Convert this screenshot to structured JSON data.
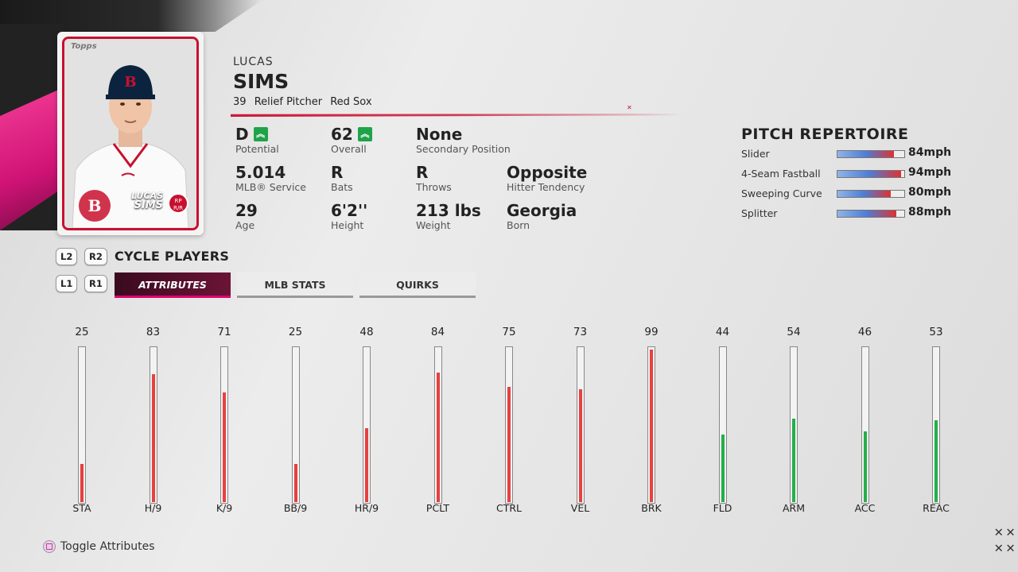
{
  "player": {
    "first_name": "LUCAS",
    "last_name": "SIMS",
    "number": "39",
    "position": "Relief Pitcher",
    "team": "Red Sox",
    "card_first": "LUCAS",
    "card_last": "SIMS",
    "card_pos": "RP",
    "card_hand": "R/R",
    "card_brand": "Topps"
  },
  "info": {
    "potential": {
      "value": "D",
      "label": "Potential"
    },
    "overall": {
      "value": "62",
      "label": "Overall"
    },
    "secondary": {
      "value": "None",
      "label": "Secondary Position"
    },
    "service": {
      "value": "5.014",
      "label": "MLB® Service"
    },
    "bats": {
      "value": "R",
      "label": "Bats"
    },
    "throws": {
      "value": "R",
      "label": "Throws"
    },
    "tendency": {
      "value": "Opposite",
      "label": "Hitter Tendency"
    },
    "age": {
      "value": "29",
      "label": "Age"
    },
    "height": {
      "value": "6'2''",
      "label": "Height"
    },
    "weight": {
      "value": "213 lbs",
      "label": "Weight"
    },
    "born": {
      "value": "Georgia",
      "label": "Born"
    }
  },
  "repertoire": {
    "title": "PITCH REPERTOIRE",
    "pitches": [
      {
        "name": "Slider",
        "speed": "84mph",
        "fill": 0.85
      },
      {
        "name": "4-Seam Fastball",
        "speed": "94mph",
        "fill": 0.95
      },
      {
        "name": "Sweeping Curve",
        "speed": "80mph",
        "fill": 0.8
      },
      {
        "name": "Splitter",
        "speed": "88mph",
        "fill": 0.88
      }
    ]
  },
  "controls": {
    "l2": "L2",
    "r2": "R2",
    "cycle_label": "CYCLE PLAYERS",
    "l1": "L1",
    "r1": "R1"
  },
  "tabs": [
    {
      "label": "ATTRIBUTES",
      "active": true
    },
    {
      "label": "MLB STATS",
      "active": false
    },
    {
      "label": "QUIRKS",
      "active": false
    }
  ],
  "attributes": [
    {
      "name": "STA",
      "value": 25,
      "color": "#e84040"
    },
    {
      "name": "H/9",
      "value": 83,
      "color": "#e84040"
    },
    {
      "name": "K/9",
      "value": 71,
      "color": "#e84040"
    },
    {
      "name": "BB/9",
      "value": 25,
      "color": "#e84040"
    },
    {
      "name": "HR/9",
      "value": 48,
      "color": "#e84040"
    },
    {
      "name": "PCLT",
      "value": 84,
      "color": "#e84040"
    },
    {
      "name": "CTRL",
      "value": 75,
      "color": "#e84040"
    },
    {
      "name": "VEL",
      "value": 73,
      "color": "#e84040"
    },
    {
      "name": "BRK",
      "value": 99,
      "color": "#e84040"
    },
    {
      "name": "FLD",
      "value": 44,
      "color": "#22b04a"
    },
    {
      "name": "ARM",
      "value": 54,
      "color": "#22b04a"
    },
    {
      "name": "ACC",
      "value": 46,
      "color": "#22b04a"
    },
    {
      "name": "REAC",
      "value": 53,
      "color": "#22b04a"
    }
  ],
  "footer": {
    "toggle_label": "Toggle Attributes"
  }
}
